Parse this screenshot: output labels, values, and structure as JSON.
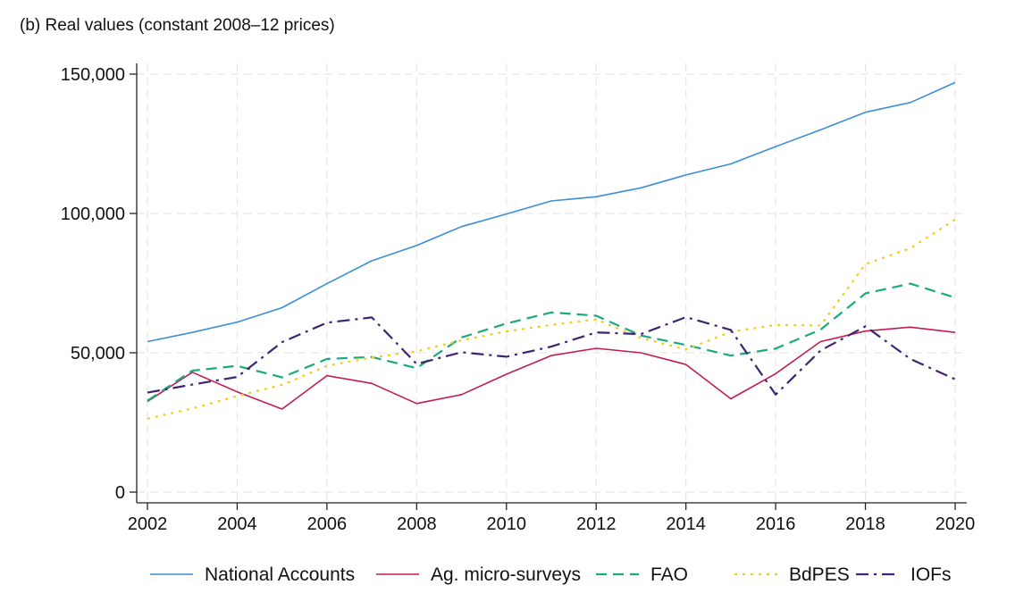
{
  "chart_data": {
    "type": "line",
    "title": "(b) Real values (constant 2008–12 prices)",
    "xlabel": "",
    "ylabel": "",
    "x": [
      2002,
      2003,
      2004,
      2005,
      2006,
      2007,
      2008,
      2009,
      2010,
      2011,
      2012,
      2013,
      2014,
      2015,
      2016,
      2017,
      2018,
      2019,
      2020
    ],
    "xlim": [
      2002,
      2020
    ],
    "ylim": [
      0,
      150000
    ],
    "x_ticks": [
      2002,
      2004,
      2006,
      2008,
      2010,
      2012,
      2014,
      2016,
      2018,
      2020
    ],
    "x_tick_labels": [
      "2002",
      "2004",
      "2006",
      "2008",
      "2010",
      "2012",
      "2014",
      "2016",
      "2018",
      "2020"
    ],
    "y_ticks": [
      0,
      50000,
      100000,
      150000
    ],
    "y_tick_labels": [
      "0",
      "50,000",
      "100,000",
      "150,000"
    ],
    "grid": true,
    "legend_position": "bottom",
    "series": [
      {
        "name": "National Accounts",
        "color": "#3b8ed8",
        "dash": "solid",
        "values": [
          54000,
          57300,
          61000,
          66200,
          74800,
          83000,
          88500,
          95300,
          99800,
          104500,
          106000,
          109200,
          113800,
          117800,
          124000,
          130000,
          136300,
          139800,
          147000
        ]
      },
      {
        "name": "Ag. micro-surveys",
        "color": "#c21b55",
        "dash": "solid",
        "values": [
          32500,
          43000,
          36000,
          29800,
          41800,
          39000,
          31800,
          35000,
          42300,
          49000,
          51600,
          50000,
          45800,
          33500,
          42500,
          54000,
          57800,
          59200,
          57300
        ]
      },
      {
        "name": "FAO",
        "color": "#1aaa7e",
        "dash": "dashed",
        "values": [
          32800,
          43600,
          45300,
          41200,
          47800,
          48500,
          44500,
          55500,
          60500,
          64500,
          63300,
          56200,
          52800,
          49000,
          51500,
          58300,
          71300,
          74800,
          69800
        ]
      },
      {
        "name": "BdPES",
        "color": "#f5cc1b",
        "dash": "dotted",
        "values": [
          26300,
          30000,
          34500,
          38500,
          45300,
          48300,
          50500,
          54500,
          57700,
          60000,
          62000,
          55300,
          51200,
          57500,
          60000,
          59800,
          81800,
          87500,
          97800
        ]
      },
      {
        "name": "IOFs",
        "color": "#3e2472",
        "dash": "dashdot",
        "values": [
          35700,
          38600,
          41300,
          53800,
          60800,
          62700,
          46000,
          50200,
          48600,
          52200,
          57300,
          56700,
          62800,
          58200,
          35000,
          50800,
          59500,
          47800,
          40500
        ]
      }
    ]
  }
}
